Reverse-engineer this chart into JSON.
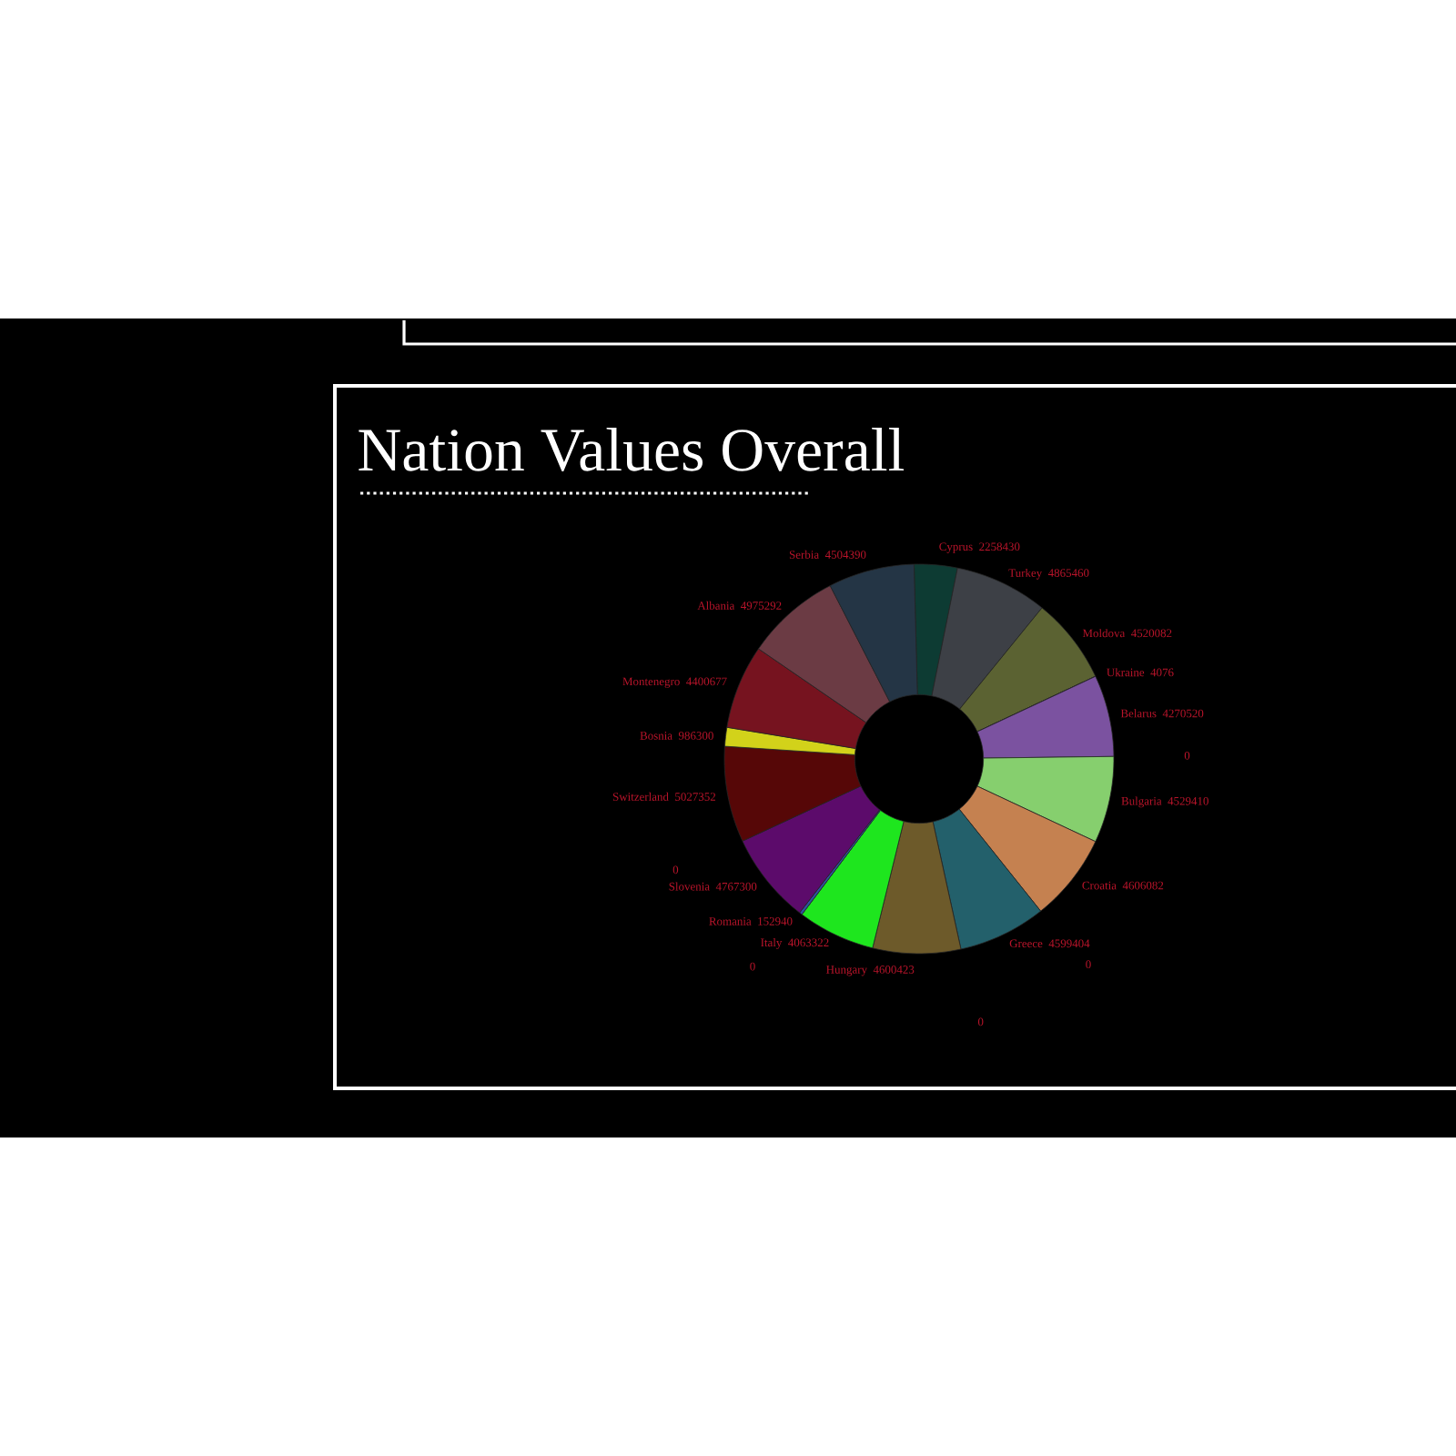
{
  "chart_data": {
    "type": "donut",
    "title": "Nation Values Overall",
    "categories": [
      "Cyprus",
      "Turkey",
      "Moldova",
      "Ukraine",
      "Belarus",
      null,
      "Bulgaria",
      "Croatia",
      null,
      "Greece",
      null,
      "Hungary",
      "Italy",
      "Romania",
      null,
      "Slovenia",
      null,
      "Switzerland",
      "Bosnia",
      "Montenegro",
      "Albania",
      "Serbia"
    ],
    "values": [
      2258430,
      4865460,
      4520082,
      4076,
      4270520,
      0,
      4529410,
      4606082,
      0,
      4599404,
      0,
      4600423,
      4063322,
      152940,
      0,
      4767300,
      0,
      5027352,
      986300,
      4400677,
      4975292,
      4504390
    ],
    "value_labels": [
      "2258430",
      "4865460",
      "4520082",
      "4076",
      "4270520",
      "0",
      "4529410",
      "4606082",
      "0",
      "4599404",
      "0",
      "4600423",
      "4063322",
      "152940",
      "0",
      "4767300",
      "0",
      "5027352",
      "986300",
      "4400677",
      "4975292",
      "4504390"
    ],
    "colors": [
      "#0d3b33",
      "#3d4046",
      "#5b6232",
      "#7a7a7a",
      "#7b52a0",
      null,
      "#86cf6e",
      "#c58150",
      null,
      "#23606b",
      null,
      "#6d5a2a",
      "#1ee61e",
      "#3050a0",
      null,
      "#5c0b6b",
      null,
      "#560707",
      "#d2d21a",
      "#76131f",
      "#6b3b44",
      "#243545"
    ]
  }
}
